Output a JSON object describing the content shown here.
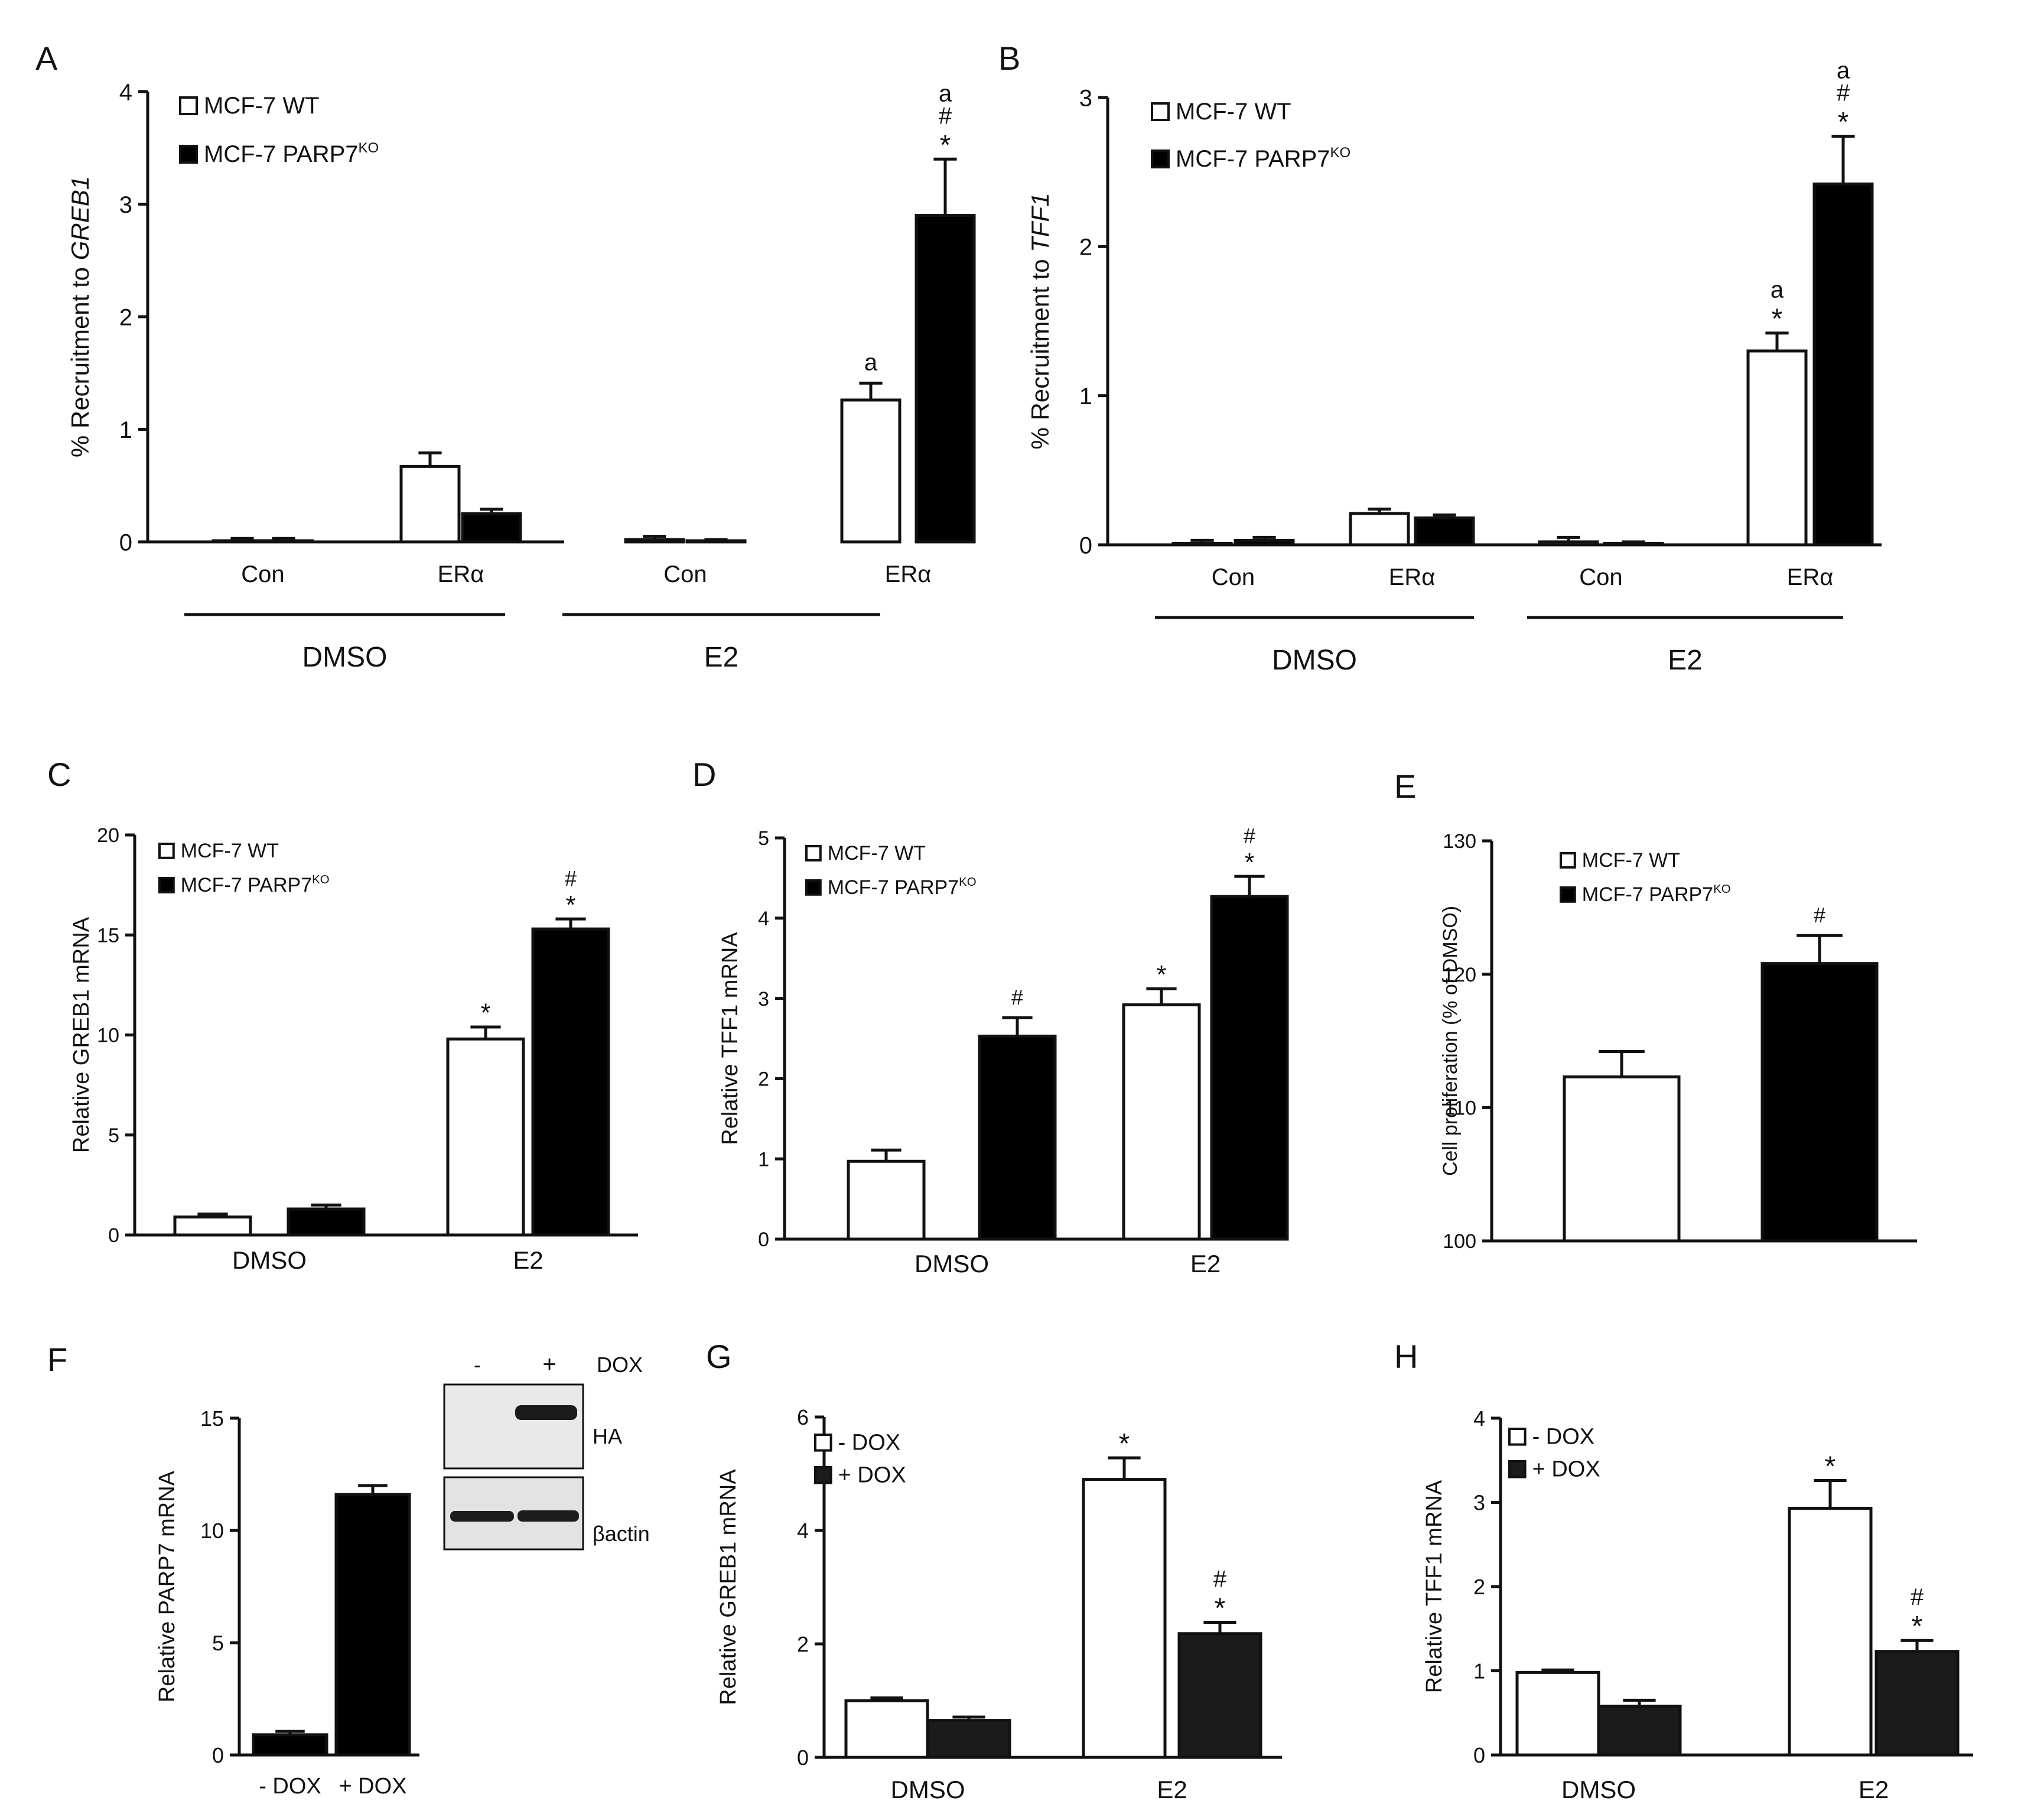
{
  "colors": {
    "wt": "#ffffff",
    "ko": "#000000",
    "dark": "#1b1b1b",
    "ink": "#111111"
  },
  "chart_data": [
    {
      "panel": "A",
      "type": "bar",
      "ylabel_parts": [
        "% Recruitment to ",
        "GREB1"
      ],
      "ylim": [
        0,
        4
      ],
      "yticks": [
        "0",
        "1",
        "2",
        "3",
        "4"
      ],
      "categories": [
        "Con",
        "ERα",
        "Con",
        "ERα"
      ],
      "groups": [
        {
          "label": "DMSO"
        },
        {
          "label": "E2"
        }
      ],
      "legend": [
        "MCF-7 WT",
        "MCF-7 PARP7",
        "KO"
      ],
      "series": [
        {
          "name": "MCF-7 WT",
          "values": [
            0.01,
            0.67,
            0.02,
            1.26
          ],
          "errors": [
            0.02,
            0.12,
            0.03,
            0.15
          ]
        },
        {
          "name": "MCF-7 PARP7KO",
          "values": [
            0.01,
            0.25,
            0.01,
            2.9
          ],
          "errors": [
            0.02,
            0.04,
            0.01,
            0.5
          ]
        }
      ],
      "annotations": [
        [
          "",
          "",
          "",
          "a"
        ],
        [
          "",
          "",
          "",
          "a\n#\n*"
        ]
      ]
    },
    {
      "panel": "B",
      "type": "bar",
      "ylabel_parts": [
        "% Recruitment to ",
        "TFF1"
      ],
      "ylim": [
        0,
        3
      ],
      "yticks": [
        "0",
        "1",
        "2",
        "3"
      ],
      "categories": [
        "Con",
        "ERα",
        "Con",
        "ERα"
      ],
      "groups": [
        {
          "label": "DMSO"
        },
        {
          "label": "E2"
        }
      ],
      "legend": [
        "MCF-7 WT",
        "MCF-7 PARP7",
        "KO"
      ],
      "series": [
        {
          "name": "MCF-7 WT",
          "values": [
            0.01,
            0.21,
            0.02,
            1.3
          ],
          "errors": [
            0.02,
            0.03,
            0.03,
            0.12
          ]
        },
        {
          "name": "MCF-7 PARP7KO",
          "values": [
            0.03,
            0.18,
            0.01,
            2.42
          ],
          "errors": [
            0.02,
            0.02,
            0.01,
            0.32
          ]
        }
      ],
      "annotations": [
        [
          "",
          "",
          "",
          "a\n*"
        ],
        [
          "",
          "",
          "",
          "a\n#\n*"
        ]
      ]
    },
    {
      "panel": "C",
      "type": "bar",
      "ylabel": "Relative GREB1 mRNA",
      "ylim": [
        0,
        20
      ],
      "yticks": [
        "0",
        "5",
        "10",
        "15",
        "20"
      ],
      "categories": [
        "DMSO",
        "E2"
      ],
      "legend": [
        "MCF-7 WT",
        "MCF-7 PARP7",
        "KO"
      ],
      "series": [
        {
          "name": "MCF-7 WT",
          "values": [
            0.9,
            9.8
          ],
          "errors": [
            0.15,
            0.6
          ]
        },
        {
          "name": "MCF-7 PARP7KO",
          "values": [
            1.3,
            15.3
          ],
          "errors": [
            0.2,
            0.5
          ]
        }
      ],
      "annotations": [
        [
          "",
          "*"
        ],
        [
          "",
          "#\n*"
        ]
      ]
    },
    {
      "panel": "D",
      "type": "bar",
      "ylabel": "Relative TFF1 mRNA",
      "ylim": [
        0,
        5
      ],
      "yticks": [
        "0",
        "1",
        "2",
        "3",
        "4",
        "5"
      ],
      "categories": [
        "DMSO",
        "E2"
      ],
      "legend": [
        "MCF-7 WT",
        "MCF-7 PARP7",
        "KO"
      ],
      "series": [
        {
          "name": "MCF-7 WT",
          "values": [
            0.97,
            2.92
          ],
          "errors": [
            0.14,
            0.2
          ]
        },
        {
          "name": "MCF-7 PARP7KO",
          "values": [
            2.53,
            4.27
          ],
          "errors": [
            0.23,
            0.25
          ]
        }
      ],
      "annotations": [
        [
          "",
          "*"
        ],
        [
          "#",
          "#\n*"
        ]
      ]
    },
    {
      "panel": "E",
      "type": "bar",
      "ylabel": "Cell proliferation (% of DMSO)",
      "ylim": [
        100,
        130
      ],
      "yticks": [
        "100",
        "110",
        "120",
        "130"
      ],
      "categories": [
        ""
      ],
      "legend": [
        "MCF-7 WT",
        "MCF-7 PARP7",
        "KO"
      ],
      "series": [
        {
          "name": "MCF-7 WT",
          "values": [
            112.3
          ],
          "errors": [
            1.9
          ]
        },
        {
          "name": "MCF-7 PARP7KO",
          "values": [
            120.8
          ],
          "errors": [
            2.1
          ]
        }
      ],
      "annotations": [
        [
          ""
        ],
        [
          "#"
        ]
      ]
    },
    {
      "panel": "F",
      "type": "bar",
      "ylabel": "Relative PARP7 mRNA",
      "ylim": [
        0,
        15
      ],
      "yticks": [
        "0",
        "5",
        "10",
        "15"
      ],
      "categories": [
        "- DOX",
        "+ DOX"
      ],
      "values": [
        0.9,
        11.6
      ],
      "errors": [
        0.15,
        0.4
      ],
      "blot": {
        "lanes": [
          "-",
          "+"
        ],
        "treatment": "DOX",
        "bands": [
          "HA",
          "βactin"
        ]
      }
    },
    {
      "panel": "G",
      "type": "bar",
      "ylabel": "Relative GREB1 mRNA",
      "ylim": [
        0,
        6
      ],
      "yticks": [
        "0",
        "2",
        "4",
        "6"
      ],
      "categories": [
        "DMSO",
        "E2"
      ],
      "legend": [
        "- DOX",
        "+ DOX"
      ],
      "series": [
        {
          "name": "- DOX",
          "values": [
            1.0,
            4.9
          ],
          "errors": [
            0.05,
            0.38
          ]
        },
        {
          "name": "+ DOX",
          "values": [
            0.65,
            2.18
          ],
          "errors": [
            0.06,
            0.2
          ]
        }
      ],
      "annotations": [
        [
          "",
          "*"
        ],
        [
          "",
          "#\n*"
        ]
      ]
    },
    {
      "panel": "H",
      "type": "bar",
      "ylabel": "Relative TFF1 mRNA",
      "ylim": [
        0,
        4
      ],
      "yticks": [
        "0",
        "1",
        "2",
        "3",
        "4"
      ],
      "categories": [
        "DMSO",
        "E2"
      ],
      "legend": [
        "- DOX",
        "+ DOX"
      ],
      "series": [
        {
          "name": "- DOX",
          "values": [
            0.98,
            2.93
          ],
          "errors": [
            0.03,
            0.33
          ]
        },
        {
          "name": "+ DOX",
          "values": [
            0.58,
            1.23
          ],
          "errors": [
            0.07,
            0.13
          ]
        }
      ],
      "annotations": [
        [
          "",
          "*"
        ],
        [
          "",
          "#\n*"
        ]
      ]
    }
  ]
}
